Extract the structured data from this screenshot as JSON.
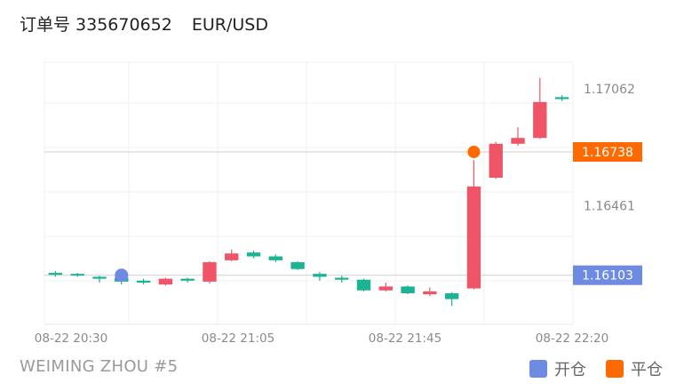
{
  "header": {
    "order_label": "订单号 335670652",
    "symbol": "EUR/USD"
  },
  "footer": {
    "account": "WEIMING ZHOU #5"
  },
  "legend": [
    {
      "label": "开仓",
      "color": "#6d8be2"
    },
    {
      "label": "平仓",
      "color": "#ff6a00"
    }
  ],
  "chart_data": {
    "type": "candlestick",
    "ylim": [
      1.1585,
      1.172
    ],
    "y_ticks": [
      "1.17062",
      "1.16461"
    ],
    "x_ticks": [
      "08-22 20:30",
      "08-22 21:05",
      "08-22 21:45",
      "08-22 22:20"
    ],
    "colors": {
      "up": "#ef5566",
      "down": "#1ab393"
    },
    "candles": [
      {
        "o": 1.16115,
        "c": 1.16105,
        "h": 1.16125,
        "l": 1.16095,
        "dir": "down"
      },
      {
        "o": 1.1611,
        "c": 1.16105,
        "h": 1.16115,
        "l": 1.16095,
        "dir": "down"
      },
      {
        "o": 1.16095,
        "c": 1.16085,
        "h": 1.161,
        "l": 1.16065,
        "dir": "down"
      },
      {
        "o": 1.1609,
        "c": 1.1607,
        "h": 1.16095,
        "l": 1.16055,
        "dir": "down"
      },
      {
        "o": 1.16075,
        "c": 1.16065,
        "h": 1.16085,
        "l": 1.16055,
        "dir": "down"
      },
      {
        "o": 1.16055,
        "c": 1.16085,
        "h": 1.1609,
        "l": 1.1605,
        "dir": "up"
      },
      {
        "o": 1.16085,
        "c": 1.16075,
        "h": 1.1609,
        "l": 1.16065,
        "dir": "down"
      },
      {
        "o": 1.1607,
        "c": 1.1617,
        "h": 1.16175,
        "l": 1.1606,
        "dir": "up"
      },
      {
        "o": 1.1618,
        "c": 1.16215,
        "h": 1.16235,
        "l": 1.16175,
        "dir": "up"
      },
      {
        "o": 1.1622,
        "c": 1.162,
        "h": 1.1623,
        "l": 1.1619,
        "dir": "down"
      },
      {
        "o": 1.162,
        "c": 1.1618,
        "h": 1.1621,
        "l": 1.1617,
        "dir": "down"
      },
      {
        "o": 1.1617,
        "c": 1.16135,
        "h": 1.16175,
        "l": 1.1613,
        "dir": "down"
      },
      {
        "o": 1.1611,
        "c": 1.16095,
        "h": 1.1612,
        "l": 1.16075,
        "dir": "down"
      },
      {
        "o": 1.1609,
        "c": 1.1608,
        "h": 1.161,
        "l": 1.16065,
        "dir": "down"
      },
      {
        "o": 1.1608,
        "c": 1.16025,
        "h": 1.16085,
        "l": 1.1602,
        "dir": "down"
      },
      {
        "o": 1.16025,
        "c": 1.16045,
        "h": 1.16065,
        "l": 1.1602,
        "dir": "up"
      },
      {
        "o": 1.16045,
        "c": 1.1601,
        "h": 1.1605,
        "l": 1.16005,
        "dir": "down"
      },
      {
        "o": 1.16005,
        "c": 1.1602,
        "h": 1.1604,
        "l": 1.15995,
        "dir": "up"
      },
      {
        "o": 1.1601,
        "c": 1.1598,
        "h": 1.16015,
        "l": 1.15945,
        "dir": "down"
      },
      {
        "o": 1.16035,
        "c": 1.1656,
        "h": 1.16695,
        "l": 1.1603,
        "dir": "up"
      },
      {
        "o": 1.16605,
        "c": 1.1678,
        "h": 1.1679,
        "l": 1.166,
        "dir": "up"
      },
      {
        "o": 1.1678,
        "c": 1.1681,
        "h": 1.16865,
        "l": 1.1677,
        "dir": "up"
      },
      {
        "o": 1.1681,
        "c": 1.16995,
        "h": 1.1712,
        "l": 1.16805,
        "dir": "up"
      },
      {
        "o": 1.1702,
        "c": 1.1701,
        "h": 1.1703,
        "l": 1.17,
        "dir": "down"
      }
    ],
    "open_marker": {
      "candle": 3,
      "price": 1.16103,
      "label": "1.16103",
      "color": "#6d8be2"
    },
    "close_marker": {
      "candle": 19,
      "price": 1.16738,
      "label": "1.16738",
      "color": "#ff6a00"
    }
  }
}
